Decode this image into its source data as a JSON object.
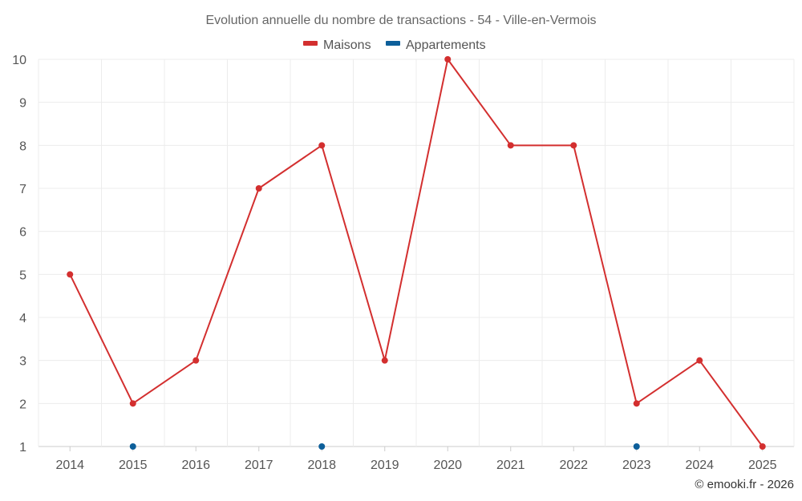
{
  "chart_data": {
    "type": "line",
    "title": "Evolution annuelle du nombre de transactions - 54 - Ville-en-Vermois",
    "x": [
      "2014",
      "2015",
      "2016",
      "2017",
      "2018",
      "2019",
      "2020",
      "2021",
      "2022",
      "2023",
      "2024",
      "2025"
    ],
    "ylim": [
      1,
      10
    ],
    "yticks": [
      "1",
      "2",
      "3",
      "4",
      "5",
      "6",
      "7",
      "8",
      "9",
      "10"
    ],
    "grid": true,
    "legend_position": "top-center",
    "series": [
      {
        "name": "Maisons",
        "color": "#d32f2f",
        "points": [
          {
            "x": "2014",
            "y": 5
          },
          {
            "x": "2015",
            "y": 2
          },
          {
            "x": "2016",
            "y": 3
          },
          {
            "x": "2017",
            "y": 7
          },
          {
            "x": "2018",
            "y": 8
          },
          {
            "x": "2019",
            "y": 3
          },
          {
            "x": "2020",
            "y": 10
          },
          {
            "x": "2021",
            "y": 8
          },
          {
            "x": "2022",
            "y": 8
          },
          {
            "x": "2023",
            "y": 2
          },
          {
            "x": "2024",
            "y": 3
          },
          {
            "x": "2025",
            "y": 1
          }
        ]
      },
      {
        "name": "Appartements",
        "color": "#0d5f9a",
        "points": [
          {
            "x": "2015",
            "y": 1
          },
          {
            "x": "2018",
            "y": 1
          },
          {
            "x": "2023",
            "y": 1
          }
        ]
      }
    ],
    "credit": "© emooki.fr - 2026"
  }
}
